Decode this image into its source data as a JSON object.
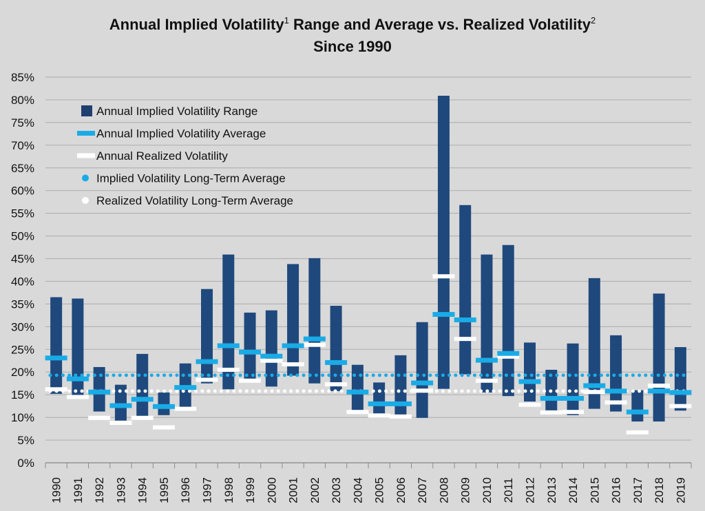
{
  "title": {
    "part1": "Annual Implied Volatility",
    "sup1": "1",
    "part2": " Range and Average vs. Realized Volatility",
    "sup2": "2",
    "line2": "Since 1990"
  },
  "colors": {
    "background": "#d9d9d9",
    "range_bar": "#1f497d",
    "implied_average": "#1aabe6",
    "realized": "#ffffff",
    "gridline": "#b3b3b3",
    "axis_text": "#111111"
  },
  "legend": [
    {
      "key": "range",
      "label": "Annual Implied Volatility Range",
      "marker": "square",
      "color": "#1f3f6e"
    },
    {
      "key": "implied_avg",
      "label": "Annual Implied Volatility Average",
      "marker": "dash",
      "color": "#1aabe6"
    },
    {
      "key": "realized",
      "label": "Annual Realized Volatility",
      "marker": "dash",
      "color": "#ffffff"
    },
    {
      "key": "implied_lt",
      "label": "Implied Volatility Long-Term Average",
      "marker": "dot",
      "color": "#1aabe6"
    },
    {
      "key": "realized_lt",
      "label": "Realized Volatility Long-Term Average",
      "marker": "dot",
      "color": "#ffffff"
    }
  ],
  "chart_data": {
    "type": "bar",
    "subtype": "floating-range with average markers",
    "grid": "horizontal",
    "legend_position": "top-left",
    "ylim": [
      0,
      85
    ],
    "yticks": [
      0,
      5,
      10,
      15,
      20,
      25,
      30,
      35,
      40,
      45,
      50,
      55,
      60,
      65,
      70,
      75,
      80,
      85
    ],
    "ytick_suffix": "%",
    "categories": [
      "1990",
      "1991",
      "1992",
      "1993",
      "1994",
      "1995",
      "1996",
      "1997",
      "1998",
      "1999",
      "2000",
      "2001",
      "2002",
      "2003",
      "2004",
      "2005",
      "2006",
      "2007",
      "2008",
      "2009",
      "2010",
      "2011",
      "2012",
      "2013",
      "2014",
      "2015",
      "2016",
      "2017",
      "2018",
      "2019"
    ],
    "series": [
      {
        "name": "Annual Implied Volatility Range",
        "low": [
          15.2,
          14.8,
          11.3,
          9.3,
          9.8,
          10.5,
          12.2,
          17.5,
          16.2,
          17.8,
          16.8,
          19.2,
          17.5,
          15.8,
          11.1,
          10.9,
          10.5,
          9.9,
          16.3,
          19.5,
          15.5,
          14.7,
          13.5,
          11.1,
          10.5,
          11.9,
          11.3,
          9.1,
          9.1,
          11.5
        ],
        "high": [
          36.5,
          36.2,
          21.1,
          17.2,
          24.0,
          15.5,
          21.9,
          38.3,
          45.9,
          33.1,
          33.6,
          43.8,
          45.1,
          34.6,
          21.6,
          17.7,
          23.7,
          31.0,
          80.9,
          56.8,
          45.9,
          48.0,
          26.5,
          20.5,
          26.3,
          40.7,
          28.1,
          16.0,
          37.3,
          25.5
        ]
      },
      {
        "name": "Annual Implied Volatility Average",
        "values": [
          23.1,
          18.5,
          15.6,
          12.6,
          14.0,
          12.4,
          16.6,
          22.3,
          25.8,
          24.4,
          23.5,
          25.8,
          27.3,
          22.1,
          15.6,
          13.0,
          13.0,
          17.6,
          32.7,
          31.5,
          22.6,
          24.1,
          17.9,
          14.2,
          14.2,
          17.0,
          15.8,
          11.2,
          15.8,
          15.5
        ]
      },
      {
        "name": "Annual Realized Volatility",
        "values": [
          16.2,
          14.5,
          9.9,
          8.8,
          9.9,
          7.8,
          11.9,
          18.3,
          20.5,
          18.1,
          22.5,
          21.7,
          26.0,
          17.3,
          11.2,
          10.4,
          10.2,
          15.9,
          41.1,
          27.3,
          18.1,
          23.4,
          12.8,
          11.1,
          11.2,
          15.6,
          13.3,
          6.7,
          17.0,
          12.5
        ]
      },
      {
        "name": "Implied Volatility Long-Term Average",
        "value": 19.3
      },
      {
        "name": "Realized Volatility Long-Term Average",
        "value": 15.8
      }
    ]
  }
}
